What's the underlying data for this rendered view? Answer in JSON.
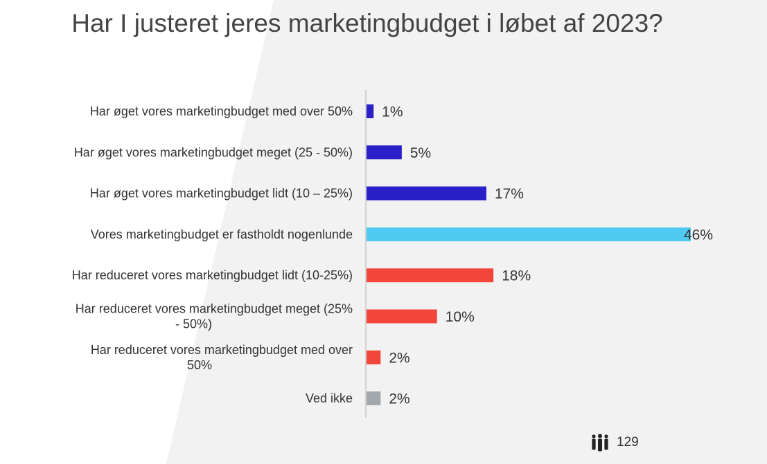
{
  "chart_data": {
    "type": "bar",
    "orientation": "horizontal",
    "title": "Har I justeret jeres marketingbudget i løbet af 2023?",
    "categories": [
      "Har øget vores marketingbudget med over 50%",
      "Har øget vores marketingbudget meget (25 - 50%)",
      "Har øget vores marketingbudget lidt (10 – 25%)",
      "Vores marketingbudget er fastholdt nogenlunde",
      "Har reduceret vores marketingbudget lidt (10-25%)",
      "Har reduceret vores marketingbudget meget (25% - 50%)",
      "Har reduceret vores marketingbudget med over 50%",
      "Ved ikke"
    ],
    "label_lines": [
      [
        "Har øget vores marketingbudget med over 50%"
      ],
      [
        "Har øget vores marketingbudget meget (25 - 50%)"
      ],
      [
        "Har øget vores marketingbudget lidt (10 – 25%)"
      ],
      [
        "Vores marketingbudget er fastholdt nogenlunde"
      ],
      [
        "Har reduceret vores marketingbudget lidt (10-25%)"
      ],
      [
        "Har reduceret vores marketingbudget meget (25%",
        "- 50%)"
      ],
      [
        "Har reduceret vores marketingbudget med over",
        "50%"
      ],
      [
        "Ved ikke"
      ]
    ],
    "values": [
      1,
      5,
      17,
      46,
      18,
      10,
      2,
      2
    ],
    "value_labels": [
      "1%",
      "5%",
      "17%",
      "46%",
      "18%",
      "10%",
      "2%",
      "2%"
    ],
    "colors": [
      "#2a1fc9",
      "#2a1fc9",
      "#2a1fc9",
      "#4fc8f2",
      "#f2463a",
      "#f2463a",
      "#f2463a",
      "#a3a8ad"
    ],
    "xlim": [
      0,
      46
    ],
    "grid": false,
    "legend": "none"
  },
  "footer": {
    "respondents_icon": "people-group-icon",
    "respondents_count": "129"
  }
}
